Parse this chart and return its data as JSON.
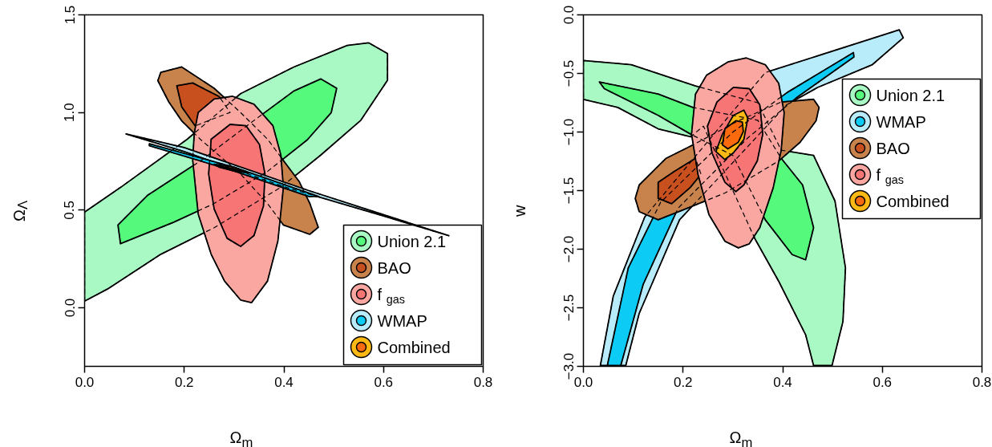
{
  "chart_data": [
    {
      "type": "area",
      "xlabel": "Ω$_{m}$",
      "ylabel": "Ω$_{Λ}$",
      "xlim": [
        0,
        0.8
      ],
      "ylim": [
        -0.3,
        1.5
      ],
      "xticks": [
        {
          "value": 0,
          "label": "0.0"
        },
        0.2,
        0.4,
        0.6,
        0.8
      ],
      "yticks": [
        {
          "value": 0,
          "label": "0.0"
        },
        0.5,
        {
          "value": 1,
          "label": "1.0"
        },
        1.5
      ],
      "legend": "bottom right",
      "series": [
        {
          "name": "Union 2.1",
          "color": "#a9f9c5",
          "x": [
            0,
            0.072,
            0.206,
            0.313,
            0.42,
            0.527,
            0.57,
            0.608,
            0.608,
            0.554,
            0.474,
            0.394,
            0.26,
            0.153,
            0.046,
            0
          ],
          "values": [
            0.49,
            0.616,
            0.863,
            1.096,
            1.233,
            1.343,
            1.357,
            1.302,
            1.165,
            0.959,
            0.782,
            0.617,
            0.41,
            0.274,
            0.096,
            0.034
          ]
        },
        {
          "color": "#55fa7d",
          "x": [
            0.067,
            0.126,
            0.233,
            0.34,
            0.42,
            0.474,
            0.506,
            0.495,
            0.447,
            0.367,
            0.26,
            0.179,
            0.072
          ],
          "values": [
            0.424,
            0.575,
            0.753,
            0.959,
            1.11,
            1.172,
            1.124,
            0.999,
            0.86,
            0.698,
            0.534,
            0.438,
            0.328
          ]
        },
        {
          "name": "BAO",
          "color": "#c8824b",
          "x": [
            0.153,
            0.195,
            0.26,
            0.313,
            0.367,
            0.399,
            0.431,
            0.452,
            0.469,
            0.452,
            0.399,
            0.367,
            0.313,
            0.233,
            0.195,
            0.169,
            0.147
          ],
          "values": [
            1.206,
            1.233,
            1.124,
            1.0,
            0.864,
            0.754,
            0.645,
            0.535,
            0.412,
            0.376,
            0.424,
            0.534,
            0.685,
            0.861,
            0.957,
            1.054,
            1.163
          ]
        },
        {
          "color": "#c84f1e",
          "x": [
            0.185,
            0.217,
            0.27,
            0.292,
            0.249,
            0.222,
            0.195
          ],
          "values": [
            1.137,
            1.151,
            1.082,
            1.0,
            0.959,
            0.931,
            1.028
          ]
        },
        {
          "name": "f$_{gas}$",
          "color": "#f9a7a0",
          "x": [
            0.228,
            0.26,
            0.297,
            0.34,
            0.378,
            0.394,
            0.399,
            0.388,
            0.367,
            0.335,
            0.313,
            0.281,
            0.254,
            0.228,
            0.217,
            0.22
          ],
          "values": [
            1.0,
            1.069,
            1.083,
            1.042,
            0.932,
            0.782,
            0.616,
            0.342,
            0.136,
            0.026,
            0.04,
            0.136,
            0.274,
            0.48,
            0.755,
            0.892
          ]
        },
        {
          "color": "#f87575",
          "x": [
            0.254,
            0.292,
            0.324,
            0.351,
            0.362,
            0.359,
            0.34,
            0.313,
            0.286,
            0.26,
            0.249
          ],
          "values": [
            0.863,
            0.939,
            0.932,
            0.836,
            0.686,
            0.521,
            0.37,
            0.314,
            0.356,
            0.506,
            0.685
          ]
        },
        {
          "name": "WMAP",
          "color": "#b8ecfb",
          "x": [
            0.083,
            0.2,
            0.45,
            0.731,
            0.6,
            0.4,
            0.2
          ],
          "values": [
            0.89,
            0.82,
            0.6,
            0.369,
            0.47,
            0.62,
            0.8
          ]
        },
        {
          "color": "#0ccbf5",
          "x": [
            0.13,
            0.3,
            0.47,
            0.45,
            0.3,
            0.13
          ],
          "values": [
            0.84,
            0.72,
            0.57,
            0.57,
            0.7,
            0.83
          ]
        },
        {
          "name": "Combined",
          "color": "#fdb913",
          "x": [
            0.26,
            0.3,
            0.33,
            0.3,
            0.27
          ],
          "values": [
            0.735,
            0.72,
            0.69,
            0.7,
            0.72
          ]
        },
        {
          "color": "#fb6a0c",
          "x": [
            0.27,
            0.3,
            0.32,
            0.3
          ],
          "values": [
            0.725,
            0.712,
            0.695,
            0.705
          ]
        }
      ]
    },
    {
      "type": "area",
      "xlabel": "Ω$_{m}$",
      "ylabel": "w",
      "xlim": [
        0,
        0.8
      ],
      "ylim": [
        -3,
        0
      ],
      "xticks": [
        {
          "value": 0,
          "label": "0.0"
        },
        0.2,
        0.4,
        0.6,
        0.8
      ],
      "yticks": [
        {
          "value": 0,
          "label": "0.0"
        },
        {
          "value": -0.5,
          "label": "−0.5"
        },
        {
          "value": -1,
          "label": "−1.0"
        },
        {
          "value": -1.5,
          "label": "−1.5"
        },
        {
          "value": -2,
          "label": "−2.0"
        },
        {
          "value": -2.5,
          "label": "−2.5"
        },
        {
          "value": -3,
          "label": "−3.0"
        }
      ],
      "legend": "top right",
      "series": [
        {
          "name": "Union 2.1",
          "color": "#a9f9c5",
          "x": [
            0,
            0.096,
            0.225,
            0.35,
            0.397,
            0.462,
            0.505,
            0.526,
            0.521,
            0.499,
            0.462,
            0.446,
            0.392,
            0.344,
            0.241,
            0.215,
            0.15,
            0.069,
            0
          ],
          "values": [
            -0.39,
            -0.425,
            -0.607,
            -0.75,
            -1.155,
            -1.2,
            -1.589,
            -2.16,
            -2.616,
            -2.993,
            -2.993,
            -2.73,
            -2.274,
            -1.909,
            -0.95,
            -1.041,
            -0.973,
            -0.79,
            -0.721
          ]
        },
        {
          "color": "#55fa7d",
          "x": [
            0.032,
            0.15,
            0.22,
            0.35,
            0.397,
            0.44,
            0.462,
            0.446,
            0.419,
            0.365,
            0.3,
            0.215,
            0.15,
            0.042
          ],
          "values": [
            -0.573,
            -0.676,
            -0.79,
            -0.9,
            -1.224,
            -1.452,
            -1.817,
            -2.091,
            -2.046,
            -1.749,
            -1.2,
            -1.018,
            -0.858,
            -0.63
          ]
        },
        {
          "name": "WMAP",
          "color": "#b8ecfb",
          "x": [
            0.034,
            0.06,
            0.123,
            0.365,
            0.634,
            0.642,
            0.58,
            0.47,
            0.408,
            0.193,
            0.112,
            0.085
          ],
          "values": [
            -2.993,
            -2.4,
            -1.726,
            -0.493,
            -0.128,
            -0.196,
            -0.425,
            -0.62,
            -0.767,
            -1.749,
            -2.548,
            -2.993
          ]
        },
        {
          "color": "#0ccbf5",
          "x": [
            0.048,
            0.09,
            0.155,
            0.3,
            0.41,
            0.542,
            0.543,
            0.43,
            0.33,
            0.19,
            0.12,
            0.075
          ],
          "values": [
            -2.993,
            -2.16,
            -1.6,
            -1.0,
            -0.66,
            -0.322,
            -0.36,
            -0.7,
            -1.05,
            -1.65,
            -2.3,
            -2.993
          ]
        },
        {
          "name": "BAO",
          "color": "#c8824b",
          "x": [
            0.112,
            0.166,
            0.22,
            0.311,
            0.397,
            0.462,
            0.473,
            0.467,
            0.435,
            0.392,
            0.284,
            0.204,
            0.15,
            0.112,
            0.104
          ],
          "values": [
            -1.452,
            -1.224,
            -1.11,
            -0.904,
            -0.744,
            -0.721,
            -0.79,
            -0.904,
            -1.087,
            -1.247,
            -1.521,
            -1.658,
            -1.749,
            -1.68,
            -1.566
          ]
        },
        {
          "color": "#c84f1e",
          "x": [
            0.15,
            0.182,
            0.225,
            0.236,
            0.214,
            0.177,
            0.15
          ],
          "values": [
            -1.429,
            -1.338,
            -1.224,
            -1.361,
            -1.475,
            -1.612,
            -1.566
          ]
        },
        {
          "name": "f$_{gas}$",
          "color": "#f9a7a0",
          "x": [
            0.247,
            0.29,
            0.327,
            0.365,
            0.392,
            0.403,
            0.397,
            0.381,
            0.354,
            0.333,
            0.311,
            0.284,
            0.252,
            0.23,
            0.217,
            0.225
          ],
          "values": [
            -0.516,
            -0.402,
            -0.368,
            -0.425,
            -0.584,
            -0.836,
            -1.155,
            -1.475,
            -1.817,
            -1.954,
            -1.989,
            -1.932,
            -1.705,
            -1.361,
            -1.018,
            -0.676
          ]
        },
        {
          "color": "#f87575",
          "x": [
            0.268,
            0.301,
            0.333,
            0.354,
            0.36,
            0.349,
            0.322,
            0.306,
            0.284,
            0.258,
            0.249
          ],
          "values": [
            -0.744,
            -0.619,
            -0.63,
            -0.767,
            -1.018,
            -1.247,
            -1.452,
            -1.509,
            -1.429,
            -1.178,
            -0.95
          ]
        },
        {
          "name": "Combined",
          "color": "#fdb913",
          "x": [
            0.279,
            0.301,
            0.322,
            0.33,
            0.322,
            0.301,
            0.284,
            0.266
          ],
          "values": [
            -1.018,
            -0.858,
            -0.813,
            -0.881,
            -1.064,
            -1.178,
            -1.235,
            -1.167
          ]
        },
        {
          "color": "#fb6a0c",
          "x": [
            0.284,
            0.306,
            0.319,
            0.321,
            0.311,
            0.29,
            0.279
          ],
          "values": [
            -0.973,
            -0.904,
            -0.916,
            -0.995,
            -1.087,
            -1.144,
            -1.11
          ]
        }
      ]
    }
  ]
}
